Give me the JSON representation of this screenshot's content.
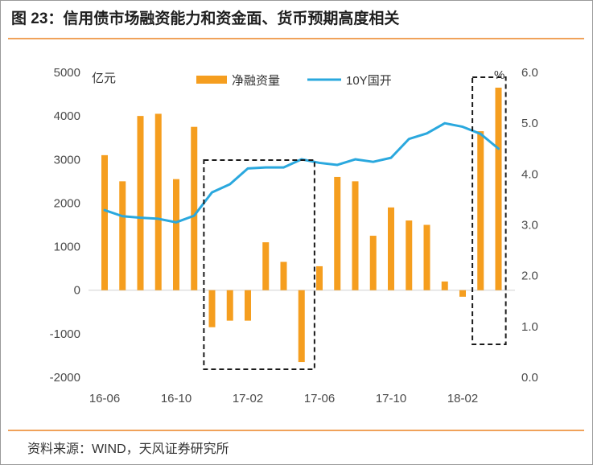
{
  "title": "图 23：信用债市场融资能力和资金面、货币预期高度相关",
  "source": "资料来源：WIND，天风证券研究所",
  "chart_data": {
    "type": "bar",
    "left_unit": "亿元",
    "right_unit": "%",
    "left_ylim": [
      -2000,
      5000
    ],
    "left_ticks": [
      "5000",
      "4000",
      "3000",
      "2000",
      "1000",
      "0",
      "-1000",
      "-2000"
    ],
    "right_ylim": [
      0.0,
      6.0
    ],
    "right_ticks": [
      "6.0",
      "5.0",
      "4.0",
      "3.0",
      "2.0",
      "1.0",
      "0.0"
    ],
    "x_tick_labels": [
      "16-06",
      "16-10",
      "17-02",
      "17-06",
      "17-10",
      "18-02"
    ],
    "legend": [
      "净融资量",
      "10Y国开"
    ],
    "colors": {
      "bar": "#f59e1f",
      "line": "#2aa8de",
      "box": "#1a1a1a"
    },
    "series": [
      {
        "name": "净融资量",
        "type": "bar",
        "axis": "left",
        "values": [
          3100,
          2500,
          4000,
          4050,
          2550,
          3750,
          -850,
          -700,
          -700,
          1100,
          650,
          -1650,
          550,
          2600,
          2500,
          1250,
          1900,
          1600,
          1500,
          200,
          -150,
          3650,
          4650
        ]
      },
      {
        "name": "10Y国开",
        "type": "line",
        "axis": "right",
        "values": [
          3.29,
          3.17,
          3.14,
          3.12,
          3.05,
          3.18,
          3.64,
          3.8,
          4.11,
          4.13,
          4.13,
          4.29,
          4.22,
          4.18,
          4.29,
          4.24,
          4.32,
          4.69,
          4.8,
          5.0,
          4.93,
          4.79,
          4.5
        ]
      }
    ],
    "highlight_ranges": [
      [
        6,
        11
      ],
      [
        21,
        22
      ]
    ]
  }
}
